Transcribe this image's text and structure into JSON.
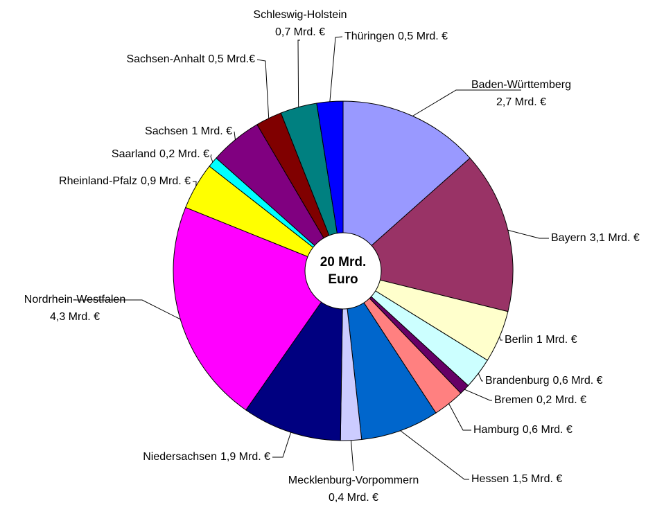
{
  "chart_data": {
    "type": "pie",
    "center_label": [
      "20 Mrd.",
      "Euro"
    ],
    "categories": [
      "Baden-Württemberg",
      "Bayern",
      "Berlin",
      "Brandenburg",
      "Bremen",
      "Hamburg",
      "Hessen",
      "Mecklenburg-Vorpommern",
      "Niedersachsen",
      "Nordrhein-Westfalen",
      "Rheinland-Pfalz",
      "Saarland",
      "Sachsen",
      "Sachsen-Anhalt",
      "Schleswig-Holstein",
      "Thüringen"
    ],
    "values": [
      2.7,
      3.1,
      1,
      0.6,
      0.2,
      0.6,
      1.5,
      0.4,
      1.9,
      4.3,
      0.9,
      0.2,
      1,
      0.5,
      0.7,
      0.5
    ],
    "value_labels": [
      "2,7 Mrd. €",
      "3,1 Mrd. €",
      "1 Mrd. €",
      "0,6 Mrd. €",
      "0,2 Mrd. €",
      "0,6 Mrd. €",
      "1,5 Mrd. €",
      "0,4 Mrd. €",
      "1,9 Mrd. €",
      "4,3 Mrd. €",
      "0,9 Mrd. €",
      "0,2 Mrd. €",
      "1 Mrd. €",
      "0,5 Mrd.€",
      "0,7 Mrd. €",
      "0,5 Mrd. €"
    ],
    "colors": [
      "#9999ff",
      "#993366",
      "#ffffcc",
      "#ccffff",
      "#660066",
      "#ff8080",
      "#0066cc",
      "#ccccff",
      "#000080",
      "#ff00ff",
      "#ffff00",
      "#00ffff",
      "#800080",
      "#800000",
      "#008080",
      "#0000ff"
    ]
  }
}
